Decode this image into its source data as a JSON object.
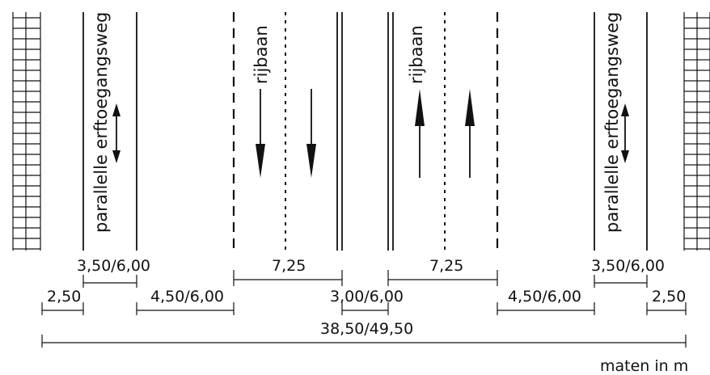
{
  "lanes": {
    "left_service_road_label": "parallelle erftoegangsweg",
    "right_service_road_label": "parallelle erftoegangsweg",
    "left_carriageway_label": "rijbaan",
    "right_carriageway_label": "rijbaan"
  },
  "dimensions": {
    "left_service_width": "3,50/6,00",
    "right_service_width": "3,50/6,00",
    "left_carriageway_width": "7,25",
    "right_carriageway_width": "7,25",
    "left_verge": "2,50",
    "right_verge": "2,50",
    "left_separation": "4,50/6,00",
    "right_separation": "4,50/6,00",
    "median": "3,00/6,00",
    "total_width": "38,50/49,50"
  },
  "units_note": "maten in m"
}
